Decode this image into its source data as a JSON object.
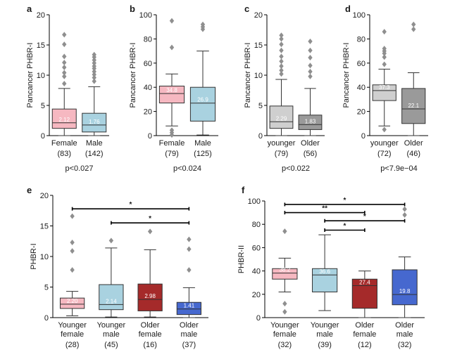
{
  "colors": {
    "female": "#f6b8c1",
    "male": "#a9d2e0",
    "younger": "#cfcfcf",
    "older": "#9a9a9a",
    "younger_female": "#f6b8c1",
    "younger_male": "#a9d2e0",
    "older_female": "#a52a2a",
    "older_male": "#4668cf",
    "outlier": "#8f8f8f",
    "sig_line": "#000000"
  },
  "chart_data": [
    {
      "panel": "a",
      "type": "box",
      "ylabel": "Pancancer PHBR-I",
      "ylim": [
        0,
        20
      ],
      "yticks": [
        0,
        5,
        10,
        15,
        20
      ],
      "pvalue": "p<0.027",
      "groups": [
        {
          "name": "Female",
          "n": "(83)",
          "color": "female",
          "median_label": "2.12",
          "q1": 1.2,
          "median": 2.12,
          "q3": 4.4,
          "whisker_low": 0.0,
          "whisker_high": 7.8,
          "outliers": [
            8.6,
            9.8,
            10.4,
            11.3,
            12.1,
            13.1,
            15.1,
            16.7
          ]
        },
        {
          "name": "Male",
          "n": "(142)",
          "color": "male",
          "median_label": "1.76",
          "q1": 0.6,
          "median": 1.76,
          "q3": 3.7,
          "whisker_low": 0.0,
          "whisker_high": 8.1,
          "outliers": [
            9.0,
            9.6,
            10.1,
            10.6,
            11.1,
            11.5,
            12.0,
            12.5,
            13.0,
            13.4
          ]
        }
      ]
    },
    {
      "panel": "b",
      "type": "box",
      "ylabel": "Pancancer PHBR-I",
      "ylim": [
        0,
        100
      ],
      "yticks": [
        0,
        20,
        40,
        60,
        80,
        100
      ],
      "pvalue": "p<0.024",
      "groups": [
        {
          "name": "Female",
          "n": "(79)",
          "color": "female",
          "median_label": "34.8",
          "q1": 27,
          "median": 34.8,
          "q3": 41,
          "whisker_low": 8,
          "whisker_high": 51,
          "outliers": [
            0.5,
            2.5,
            4.5,
            73,
            95
          ]
        },
        {
          "name": "Male",
          "n": "(125)",
          "color": "male",
          "median_label": "26.9",
          "q1": 12,
          "median": 26.9,
          "q3": 40,
          "whisker_low": 0.5,
          "whisker_high": 70,
          "outliers": [
            88,
            90,
            92
          ]
        }
      ]
    },
    {
      "panel": "c",
      "type": "box",
      "ylabel": "Pancancer PHBR-I",
      "ylim": [
        0,
        20
      ],
      "yticks": [
        0,
        5,
        10,
        15,
        20
      ],
      "pvalue": "p<0.022",
      "groups": [
        {
          "name": "younger",
          "n": "(79)",
          "color": "younger",
          "median_label": "2.29",
          "q1": 1.2,
          "median": 2.29,
          "q3": 4.9,
          "whisker_low": 0.0,
          "whisker_high": 9.3,
          "outliers": [
            10.2,
            10.8,
            11.5,
            12.3,
            13.1,
            14.1,
            15.1,
            16.0,
            16.6
          ]
        },
        {
          "name": "Older",
          "n": "(56)",
          "color": "older",
          "median_label": "1.83",
          "q1": 1.0,
          "median": 1.83,
          "q3": 3.4,
          "whisker_low": 0.0,
          "whisker_high": 7.8,
          "outliers": [
            9.8,
            10.6,
            11.6,
            12.9,
            14.1,
            15.6
          ]
        }
      ]
    },
    {
      "panel": "d",
      "type": "box",
      "ylabel": "Pancancer PHBR-I",
      "ylim": [
        0,
        100
      ],
      "yticks": [
        0,
        20,
        40,
        60,
        80,
        100
      ],
      "pvalue": "p<7.9e−04",
      "groups": [
        {
          "name": "younger",
          "n": "(72)",
          "color": "younger",
          "median_label": "37.3",
          "q1": 29,
          "median": 37.3,
          "q3": 42,
          "whisker_low": 8,
          "whisker_high": 55,
          "outliers": [
            5,
            59,
            65,
            68,
            70,
            72,
            86
          ]
        },
        {
          "name": "Older",
          "n": "(46)",
          "color": "older",
          "median_label": "22.1",
          "q1": 10,
          "median": 22.1,
          "q3": 39,
          "whisker_low": 0,
          "whisker_high": 52,
          "outliers": [
            88,
            92
          ]
        }
      ]
    },
    {
      "panel": "e",
      "type": "box",
      "ylabel": "PHBR-I",
      "ylim": [
        0,
        20
      ],
      "yticks": [
        0,
        5,
        10,
        15,
        20
      ],
      "groups": [
        {
          "name": [
            "Younger",
            "female"
          ],
          "n": "(28)",
          "color": "younger_female",
          "median_label": "2.20",
          "q1": 1.5,
          "median": 2.2,
          "q3": 3.2,
          "whisker_low": 0.3,
          "whisker_high": 4.3,
          "outliers": [
            7.8,
            10.9,
            12.3,
            16.6
          ]
        },
        {
          "name": [
            "Younger",
            "male"
          ],
          "n": "(45)",
          "color": "younger_male",
          "median_label": "2.14",
          "q1": 1.3,
          "median": 2.14,
          "q3": 5.4,
          "whisker_low": 0.1,
          "whisker_high": 11.4,
          "outliers": [
            12.6
          ]
        },
        {
          "name": [
            "Older",
            "female"
          ],
          "n": "(16)",
          "color": "older_female",
          "median_label": "2.98",
          "q1": 1.1,
          "median": 2.98,
          "q3": 5.5,
          "whisker_low": 0.1,
          "whisker_high": 11.1,
          "outliers": [
            14.1
          ]
        },
        {
          "name": [
            "Older",
            "male"
          ],
          "n": "(37)",
          "color": "older_male",
          "median_label": "1.41",
          "q1": 0.5,
          "median": 1.41,
          "q3": 2.5,
          "whisker_low": 0.0,
          "whisker_high": 4.9,
          "outliers": [
            7.8,
            11.2,
            12.8
          ]
        }
      ],
      "significance": [
        {
          "from": 0,
          "to": 3,
          "y": 17.8,
          "label": "*"
        },
        {
          "from": 1,
          "to": 3,
          "y": 15.5,
          "label": "*"
        }
      ]
    },
    {
      "panel": "f",
      "type": "box",
      "ylabel": "PHBR-II",
      "ylim": [
        0,
        100
      ],
      "yticks": [
        0,
        20,
        40,
        60,
        80,
        100
      ],
      "groups": [
        {
          "name": [
            "Younger",
            "female"
          ],
          "n": "(32)",
          "color": "younger_female",
          "median_label": "38.2",
          "q1": 33,
          "median": 38.2,
          "q3": 42,
          "whisker_low": 22,
          "whisker_high": 51,
          "outliers": [
            5,
            12,
            74
          ]
        },
        {
          "name": [
            "Younger",
            "male"
          ],
          "n": "(39)",
          "color": "younger_male",
          "median_label": "36.6",
          "q1": 22,
          "median": 36.6,
          "q3": 42,
          "whisker_low": 6,
          "whisker_high": 71,
          "outliers": []
        },
        {
          "name": [
            "Older",
            "female"
          ],
          "n": "(12)",
          "color": "older_female",
          "median_label": "27.4",
          "q1": 8,
          "median": 27.4,
          "q3": 33,
          "whisker_low": 0,
          "whisker_high": 40,
          "outliers": []
        },
        {
          "name": [
            "Older",
            "male"
          ],
          "n": "(32)",
          "color": "older_male",
          "median_label": "19.8",
          "q1": 11,
          "median": 19.8,
          "q3": 41,
          "whisker_low": 0,
          "whisker_high": 52,
          "outliers": [
            88,
            93
          ]
        }
      ],
      "significance": [
        {
          "from": 0,
          "to": 3,
          "y": 97,
          "label": "*"
        },
        {
          "from": 0,
          "to": 2,
          "y": 90,
          "label": "**"
        },
        {
          "from": 1,
          "to": 3,
          "y": 83,
          "label": "*"
        },
        {
          "from": 1,
          "to": 2,
          "y": 75,
          "label": "*"
        }
      ]
    }
  ]
}
